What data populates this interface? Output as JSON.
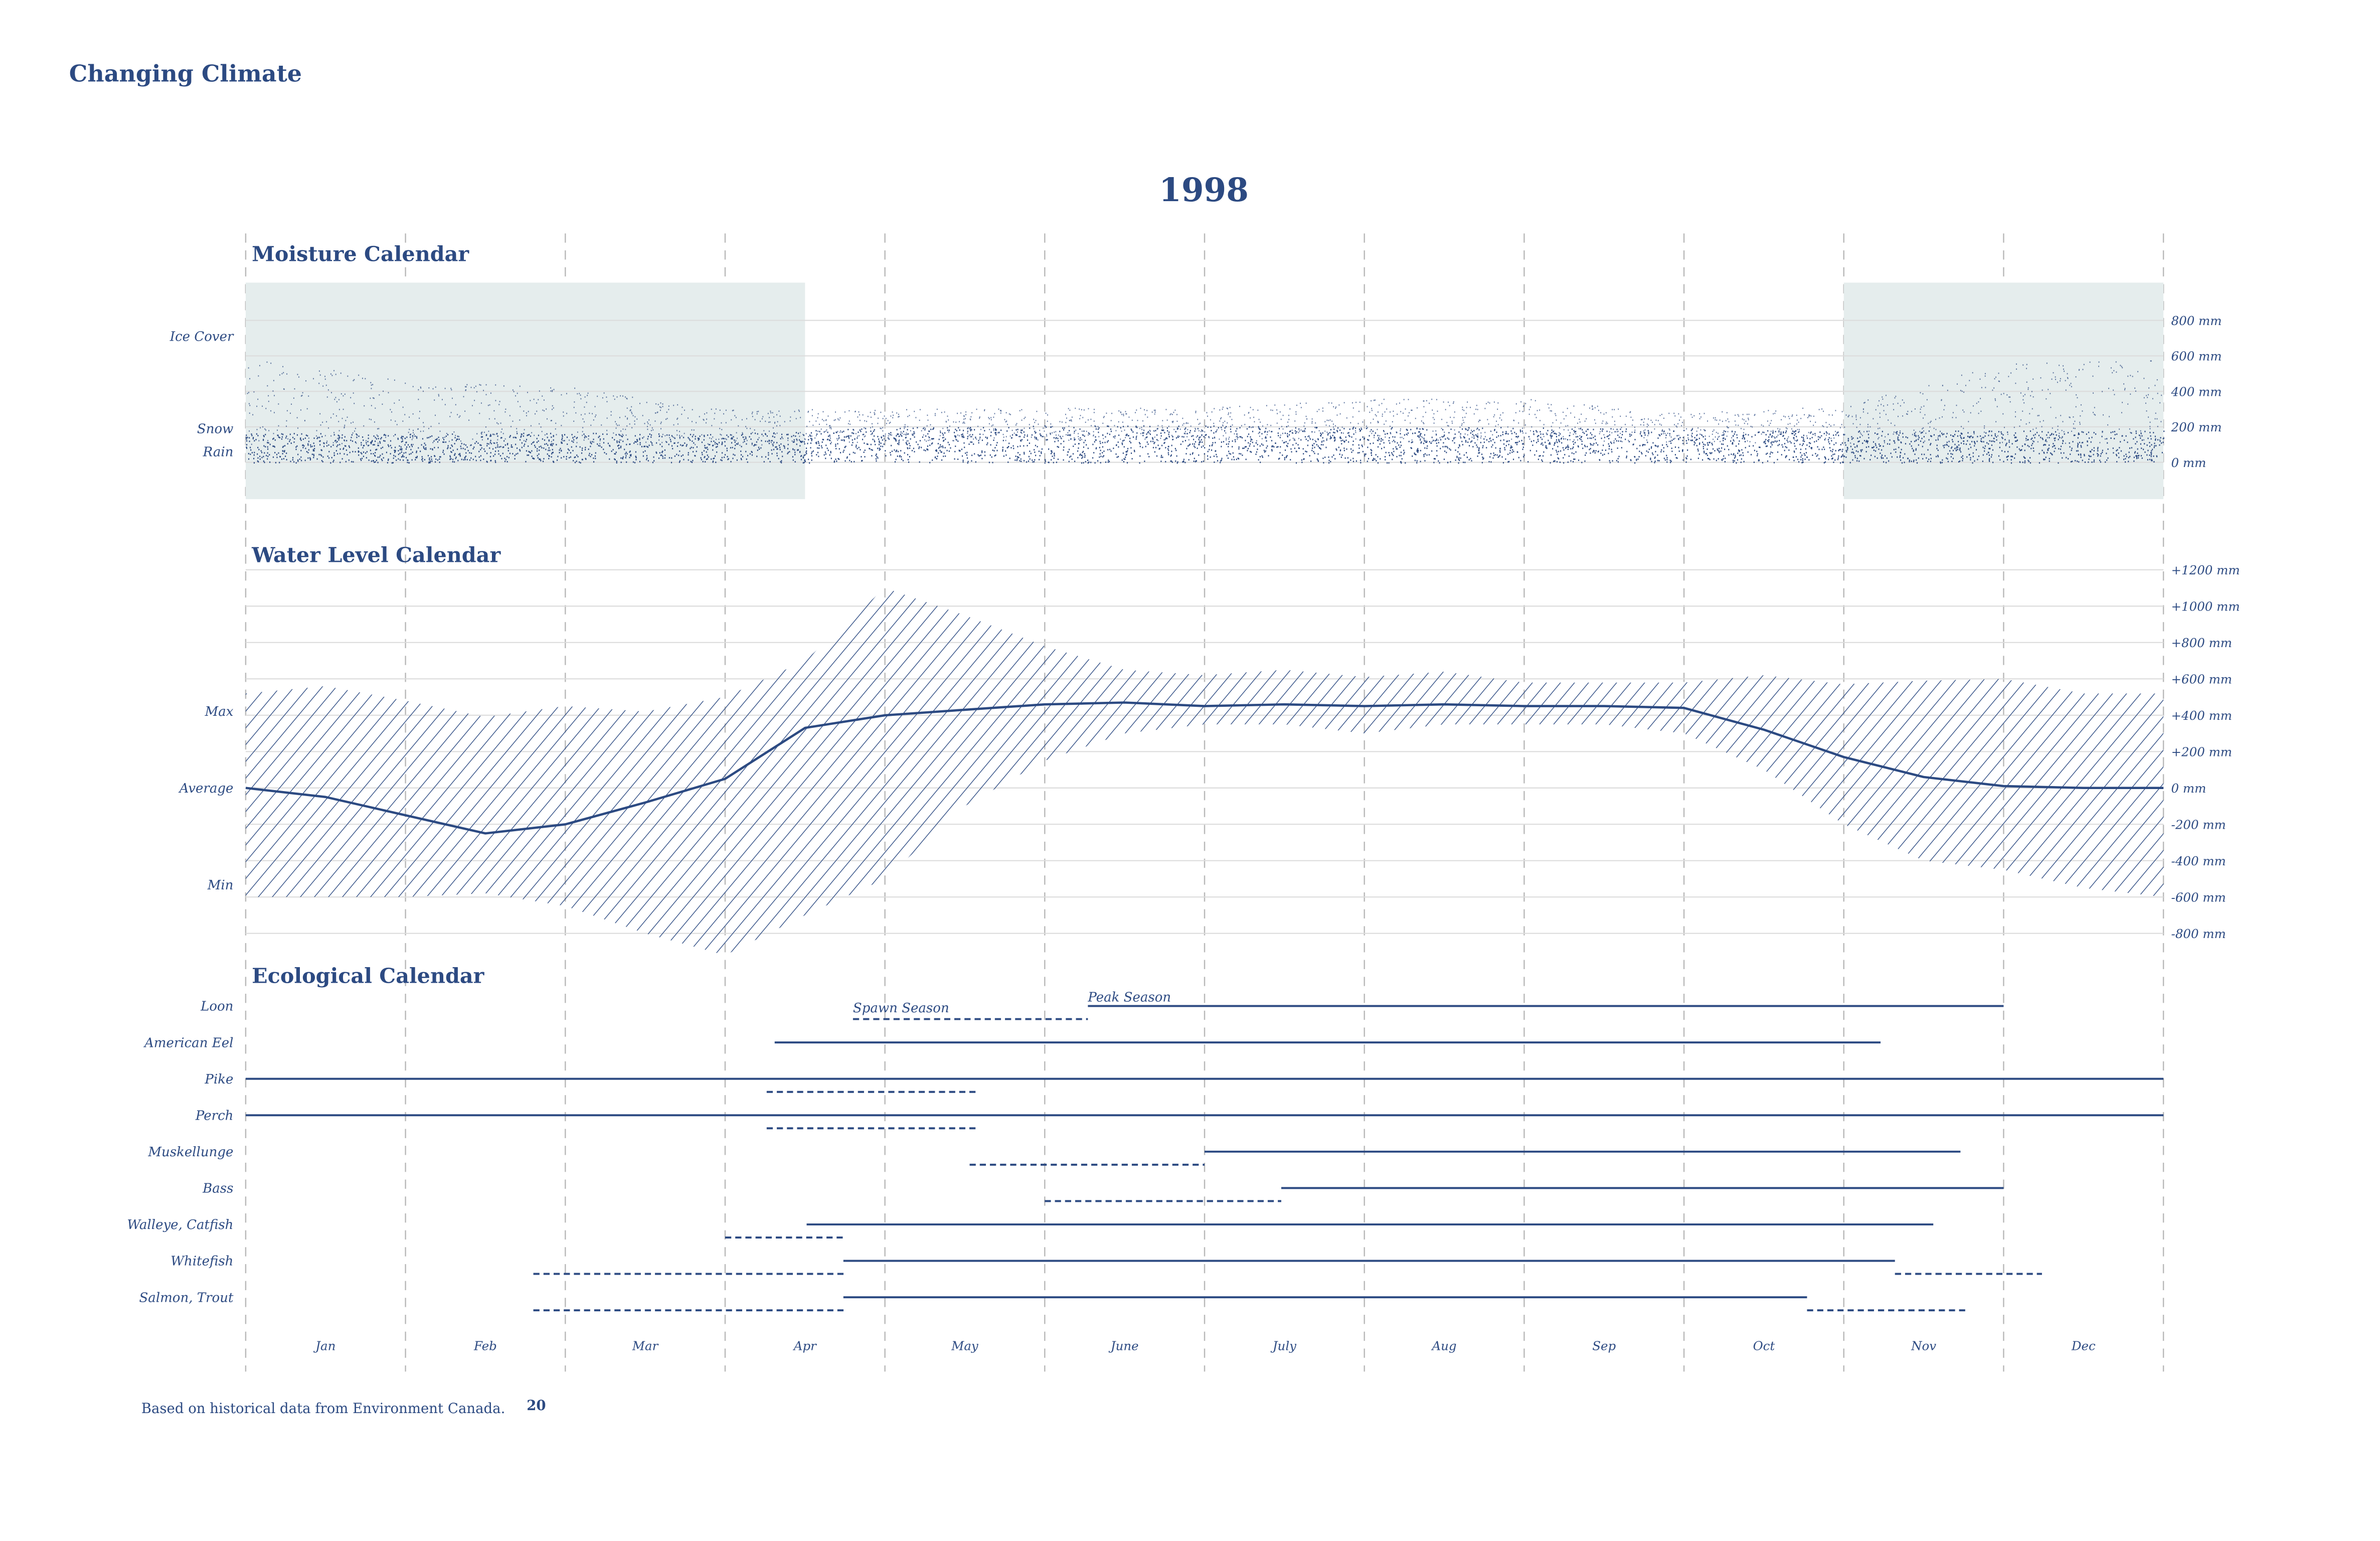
{
  "header": {
    "title": "Changing Climate",
    "year": "1998"
  },
  "footer": {
    "source": "Based on historical data from Environment Canada.",
    "page_number": "20"
  },
  "colors": {
    "ink": "#2c4a82",
    "ice_shade": "#e5eded",
    "grid": "#dcdcdc"
  },
  "months": [
    "Jan",
    "Feb",
    "Mar",
    "Apr",
    "May",
    "June",
    "July",
    "Aug",
    "Sep",
    "Oct",
    "Nov",
    "Dec"
  ],
  "chart_data": [
    {
      "type": "area",
      "title": "Moisture Calendar",
      "row_labels": [
        "Ice Cover",
        "Snow",
        "Rain"
      ],
      "y_ticks": [
        "800 mm",
        "600 mm",
        "400 mm",
        "200 mm",
        "0 mm"
      ],
      "y_tick_values": [
        800,
        600,
        400,
        200,
        0
      ],
      "ylim": [
        0,
        800
      ],
      "x_unit": "month of year (0 = Jan 1, 12 = Dec 31)",
      "ice_cover_periods": [
        [
          0,
          3.5
        ],
        [
          10,
          12
        ]
      ],
      "x": [
        0,
        1,
        2,
        3,
        4,
        5,
        6,
        7,
        8,
        9,
        10,
        11,
        12
      ],
      "rain_mm": [
        170,
        160,
        170,
        160,
        200,
        210,
        210,
        200,
        200,
        190,
        180,
        180,
        180
      ],
      "total_mm": [
        600,
        460,
        430,
        300,
        300,
        310,
        310,
        360,
        360,
        280,
        320,
        560,
        600
      ]
    },
    {
      "type": "area",
      "title": "Water Level Calendar",
      "row_labels": [
        "Max",
        "Average",
        "Min"
      ],
      "y_ticks": [
        "+1200 mm",
        "+1000 mm",
        "+800 mm",
        "+600 mm",
        "+400 mm",
        "+200 mm",
        "0 mm",
        "-200 mm",
        "-400 mm",
        "-600 mm",
        "-800 mm"
      ],
      "y_tick_values": [
        1200,
        1000,
        800,
        600,
        400,
        200,
        0,
        -200,
        -400,
        -600,
        -800
      ],
      "ylim": [
        -800,
        1200
      ],
      "x": [
        0,
        0.5,
        1,
        1.5,
        2,
        2.5,
        3,
        3.5,
        4,
        4.5,
        5,
        5.5,
        6,
        6.5,
        7,
        7.5,
        8,
        8.5,
        9,
        9.5,
        10,
        10.5,
        11,
        11.5,
        12
      ],
      "max_mm": [
        520,
        560,
        480,
        390,
        450,
        420,
        500,
        700,
        1100,
        950,
        780,
        650,
        620,
        650,
        610,
        640,
        580,
        580,
        580,
        620,
        570,
        590,
        600,
        520,
        520
      ],
      "average_mm": [
        0,
        -50,
        -150,
        -250,
        -200,
        -80,
        50,
        330,
        400,
        430,
        460,
        470,
        450,
        460,
        450,
        460,
        450,
        450,
        440,
        320,
        170,
        60,
        10,
        0,
        0
      ],
      "min_mm": [
        -600,
        -600,
        -600,
        -580,
        -650,
        -800,
        -920,
        -700,
        -500,
        -100,
        150,
        300,
        350,
        350,
        300,
        350,
        350,
        350,
        300,
        100,
        -200,
        -400,
        -450,
        -550,
        -600
      ]
    },
    {
      "type": "timeline",
      "title": "Ecological Calendar",
      "annotations": {
        "spawn": "Spawn Season",
        "peak": "Peak Season"
      },
      "species": [
        {
          "name": "Loon",
          "peak": [
            [
              5.27,
              11.0
            ]
          ],
          "spawn": [
            [
              3.8,
              5.27
            ]
          ]
        },
        {
          "name": "American Eel",
          "peak": [
            [
              3.31,
              10.23
            ]
          ],
          "spawn": []
        },
        {
          "name": "Pike",
          "peak": [
            [
              0,
              12
            ]
          ],
          "spawn": [
            [
              3.26,
              4.57
            ]
          ]
        },
        {
          "name": "Perch",
          "peak": [
            [
              0,
              12
            ]
          ],
          "spawn": [
            [
              3.26,
              4.57
            ]
          ]
        },
        {
          "name": "Muskellunge",
          "peak": [
            [
              6.0,
              10.73
            ]
          ],
          "spawn": [
            [
              4.53,
              6.0
            ]
          ]
        },
        {
          "name": "Bass",
          "peak": [
            [
              6.48,
              11.0
            ]
          ],
          "spawn": [
            [
              5.0,
              6.48
            ]
          ]
        },
        {
          "name": "Walleye, Catfish",
          "peak": [
            [
              3.51,
              10.56
            ]
          ],
          "spawn": [
            [
              3.0,
              3.75
            ]
          ]
        },
        {
          "name": "Whitefish",
          "peak": [
            [
              3.74,
              10.32
            ]
          ],
          "spawn": [
            [
              1.8,
              3.75
            ],
            [
              10.32,
              11.24
            ]
          ]
        },
        {
          "name": "Salmon, Trout",
          "peak": [
            [
              3.74,
              9.77
            ]
          ],
          "spawn": [
            [
              1.8,
              3.75
            ],
            [
              9.77,
              10.77
            ]
          ]
        }
      ]
    }
  ]
}
